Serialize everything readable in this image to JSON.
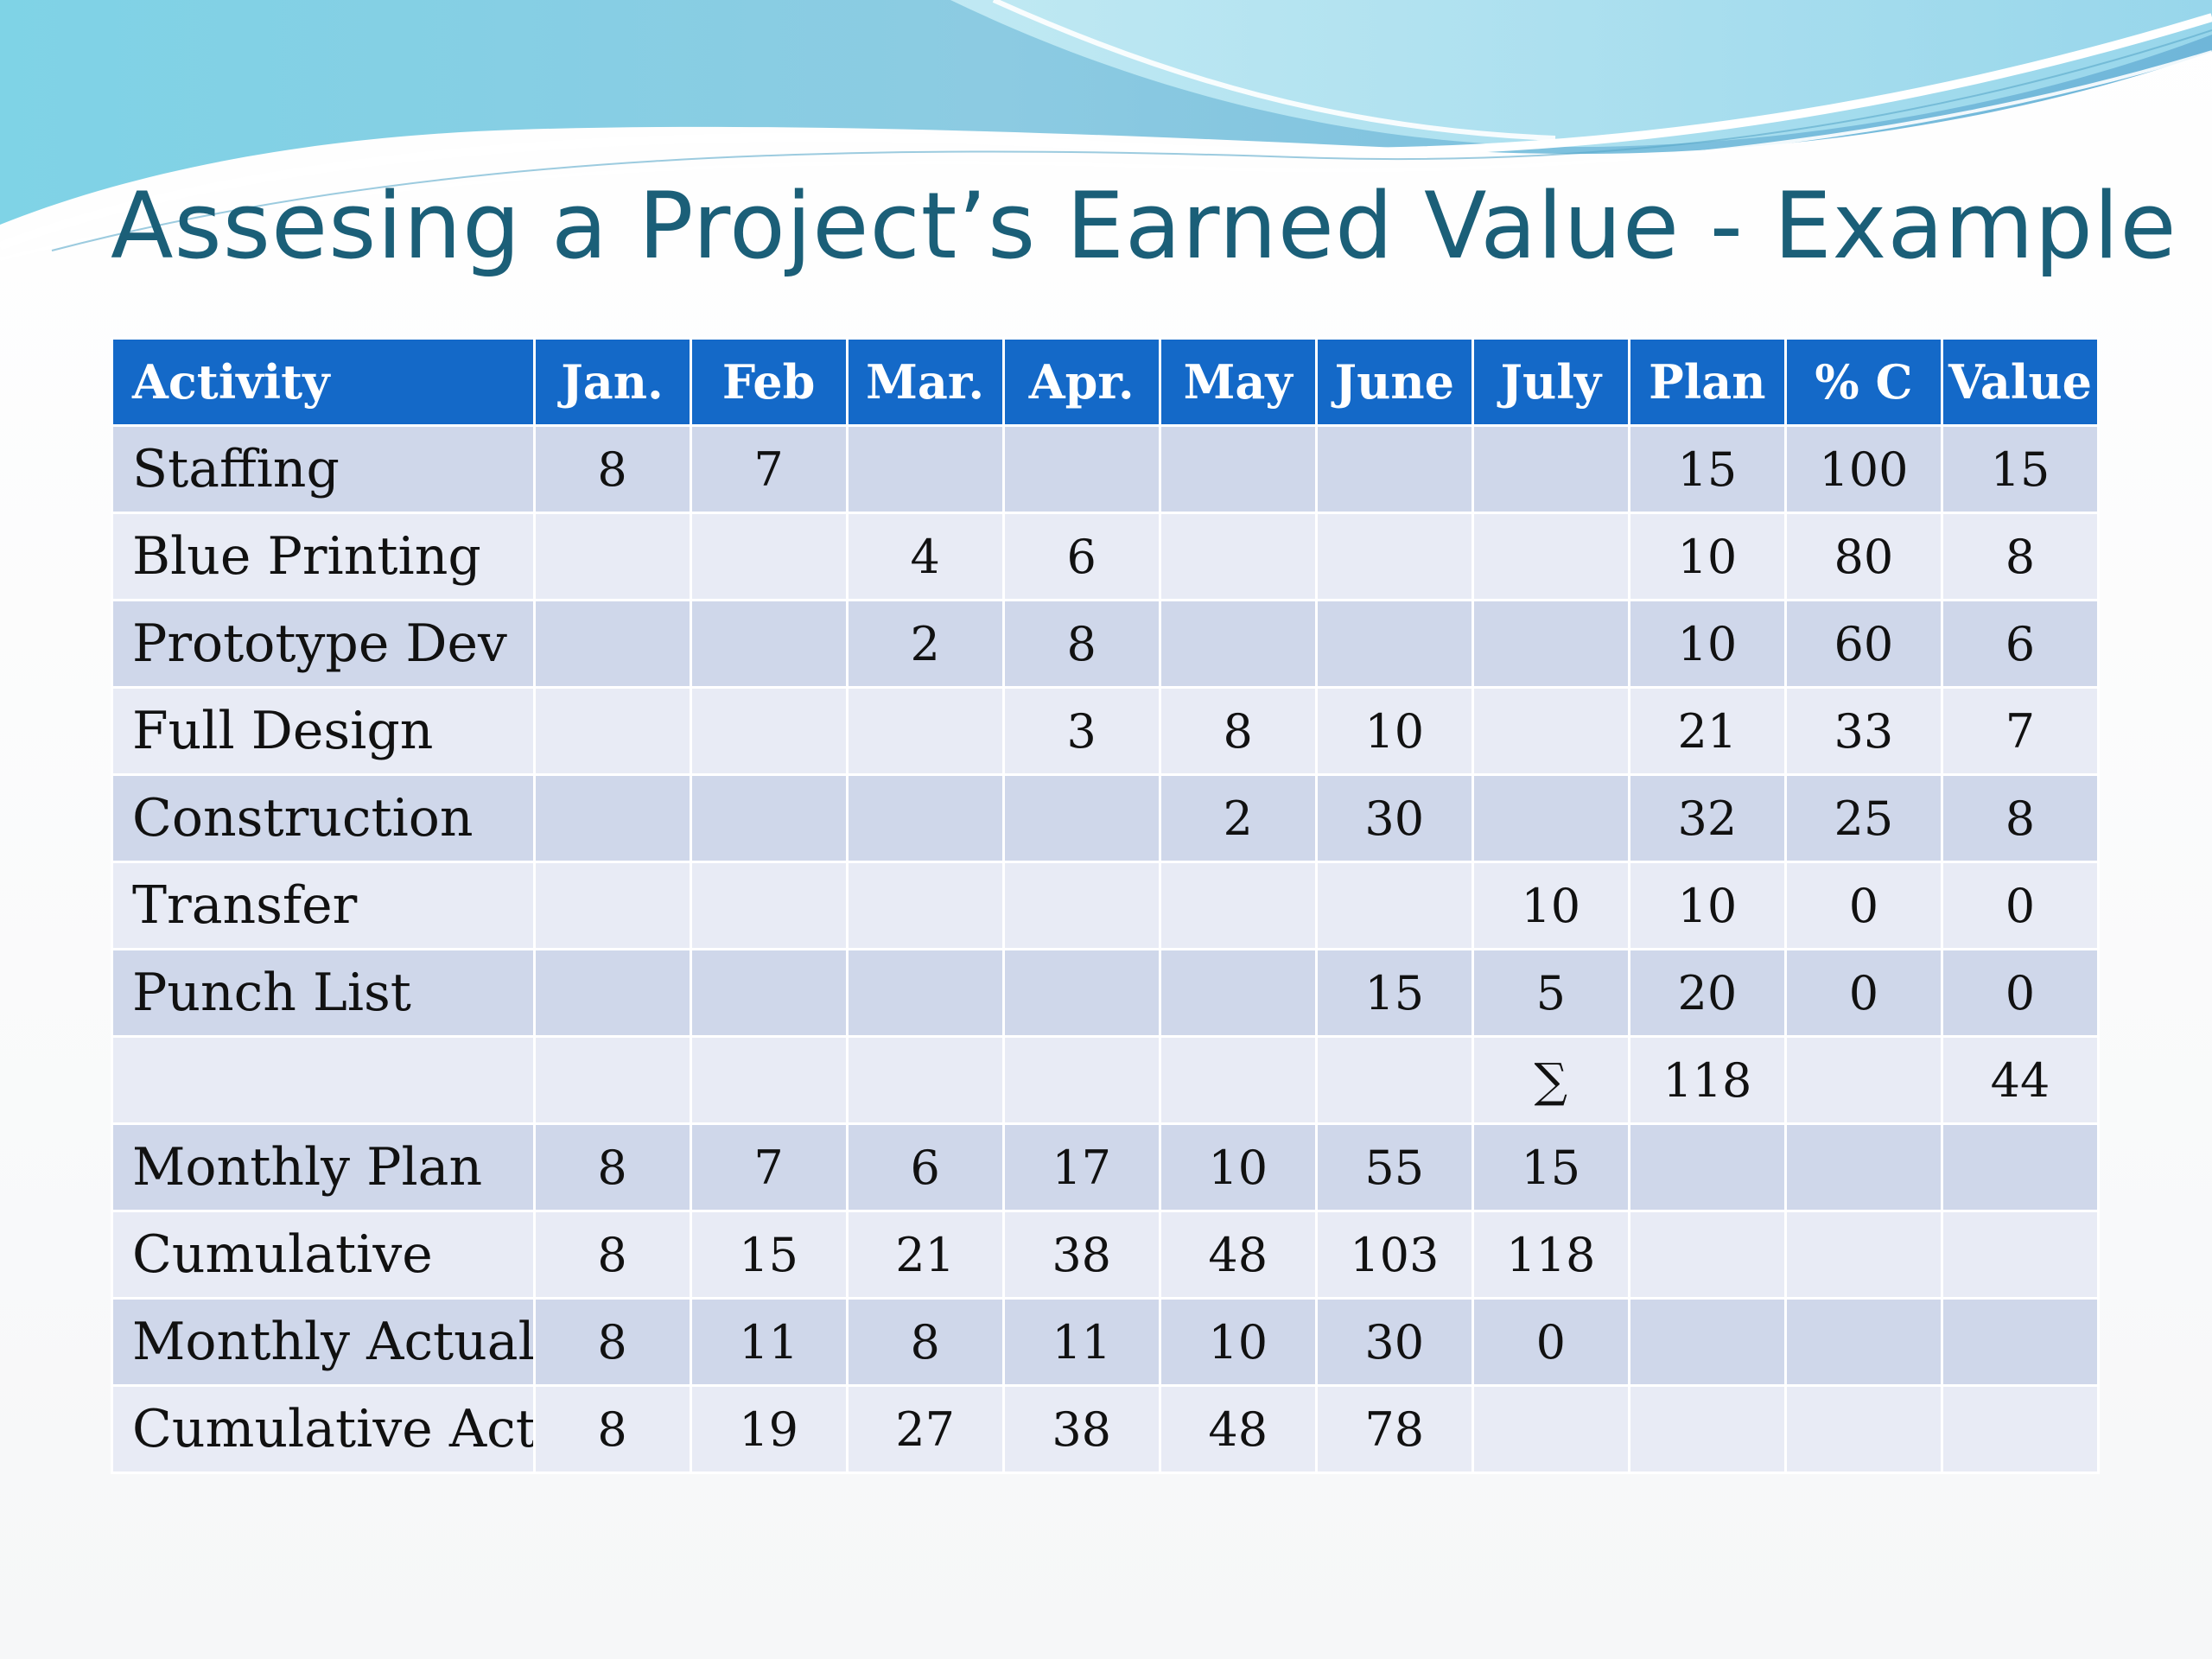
{
  "slide": {
    "title": "Assesing a Project’s Earned Value - Example"
  },
  "table": {
    "headers": [
      "Activity",
      "Jan.",
      "Feb",
      "Mar.",
      "Apr.",
      "May",
      "June",
      "July",
      "Plan",
      "% C",
      "Value"
    ],
    "rows": [
      [
        "Staffing",
        "8",
        "7",
        "",
        "",
        "",
        "",
        "",
        "15",
        "100",
        "15"
      ],
      [
        "Blue Printing",
        "",
        "",
        "4",
        "6",
        "",
        "",
        "",
        "10",
        "80",
        "8"
      ],
      [
        "Prototype Dev",
        "",
        "",
        "2",
        "8",
        "",
        "",
        "",
        "10",
        "60",
        "6"
      ],
      [
        "Full Design",
        "",
        "",
        "",
        "3",
        "8",
        "10",
        "",
        "21",
        "33",
        "7"
      ],
      [
        "Construction",
        "",
        "",
        "",
        "",
        "2",
        "30",
        "",
        "32",
        "25",
        "8"
      ],
      [
        "Transfer",
        "",
        "",
        "",
        "",
        "",
        "",
        "10",
        "10",
        "0",
        "0"
      ],
      [
        "Punch List",
        "",
        "",
        "",
        "",
        "",
        "15",
        "5",
        "20",
        "0",
        "0"
      ],
      [
        "",
        "",
        "",
        "",
        "",
        "",
        "",
        "∑",
        "118",
        "",
        "44"
      ],
      [
        "Monthly Plan",
        "8",
        "7",
        "6",
        "17",
        "10",
        "55",
        "15",
        "",
        "",
        ""
      ],
      [
        "Cumulative",
        "8",
        "15",
        "21",
        "38",
        "48",
        "103",
        "118",
        "",
        "",
        ""
      ],
      [
        "Monthly Actual",
        "8",
        "11",
        "8",
        "11",
        "10",
        "30",
        "0",
        "",
        "",
        ""
      ],
      [
        "Cumulative Act",
        "8",
        "19",
        "27",
        "38",
        "48",
        "78",
        "",
        "",
        "",
        ""
      ]
    ]
  }
}
